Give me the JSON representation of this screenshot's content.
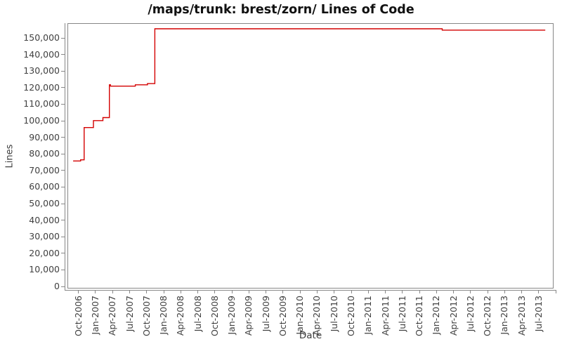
{
  "window": {
    "background_color": "#ffffff"
  },
  "chart_data": {
    "type": "line",
    "step": "after",
    "title": "/maps/trunk: brest/zorn/ Lines of Code",
    "xlabel": "Date",
    "ylabel": "Lines",
    "legend": "none",
    "grid": "off",
    "line_color": "#d40000",
    "axis_color": "#878787",
    "tick_label_color": "#404040",
    "title_color": "#111111",
    "ylim": [
      0,
      158900
    ],
    "x_range": [
      "2006-08",
      "2013-09"
    ],
    "y_tick_labels": [
      "0",
      "10,000",
      "20,000",
      "30,000",
      "40,000",
      "50,000",
      "60,000",
      "70,000",
      "80,000",
      "90,000",
      "100,000",
      "110,000",
      "120,000",
      "130,000",
      "140,000",
      "150,000"
    ],
    "y_tick_values": [
      0,
      10000,
      20000,
      30000,
      40000,
      50000,
      60000,
      70000,
      80000,
      90000,
      100000,
      110000,
      120000,
      130000,
      140000,
      150000
    ],
    "x_tick_labels": [
      "Oct-2006",
      "Jan-2007",
      "Apr-2007",
      "Jul-2007",
      "Oct-2007",
      "Jan-2008",
      "Apr-2008",
      "Jul-2008",
      "Oct-2008",
      "Jan-2009",
      "Apr-2009",
      "Jul-2009",
      "Oct-2009",
      "Jan-2010",
      "Apr-2010",
      "Jul-2010",
      "Oct-2010",
      "Jan-2011",
      "Apr-2011",
      "Jul-2011",
      "Oct-2011",
      "Jan-2012",
      "Apr-2012",
      "Jul-2012",
      "Oct-2012",
      "Jan-2013",
      "Apr-2013",
      "Jul-2013"
    ],
    "points": [
      {
        "date": "2006-09-03",
        "lines": 75700
      },
      {
        "date": "2006-10-12",
        "lines": 76400
      },
      {
        "date": "2006-11-01",
        "lines": 95900
      },
      {
        "date": "2006-12-20",
        "lines": 100100
      },
      {
        "date": "2007-02-10",
        "lines": 101900
      },
      {
        "date": "2007-03-14",
        "lines": 121700
      },
      {
        "date": "2007-03-20",
        "lines": 120900
      },
      {
        "date": "2007-08-01",
        "lines": 121700
      },
      {
        "date": "2007-10-05",
        "lines": 122400
      },
      {
        "date": "2007-11-14",
        "lines": 155500
      },
      {
        "date": "2012-02-01",
        "lines": 154700
      },
      {
        "date": "2013-08-05",
        "lines": 154700
      }
    ]
  }
}
